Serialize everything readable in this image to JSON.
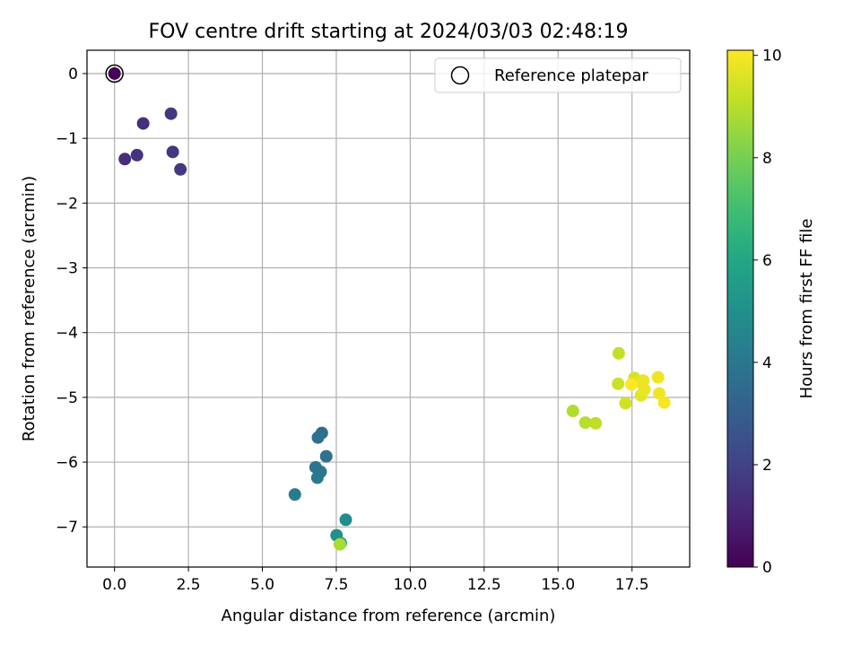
{
  "chart_data": {
    "type": "scatter",
    "title": "FOV centre drift starting at 2024/03/03 02:48:19",
    "xlabel": "Angular distance from reference (arcmin)",
    "ylabel": "Rotation from reference (arcmin)",
    "xlim": [
      -0.93,
      19.45
    ],
    "ylim": [
      -7.62,
      0.36
    ],
    "xticks": [
      0.0,
      2.5,
      5.0,
      7.5,
      10.0,
      12.5,
      15.0,
      17.5
    ],
    "xtick_labels": [
      "0.0",
      "2.5",
      "5.0",
      "7.5",
      "10.0",
      "12.5",
      "15.0",
      "17.5"
    ],
    "yticks": [
      0,
      -1,
      -2,
      -3,
      -4,
      -5,
      -6,
      -7
    ],
    "ytick_labels": [
      "0",
      "−1",
      "−2",
      "−3",
      "−4",
      "−5",
      "−6",
      "−7"
    ],
    "grid": true,
    "legend": {
      "location": "top-right",
      "entries": [
        "Reference platepar"
      ]
    },
    "colorbar": {
      "label": "Hours from first FF file",
      "range": [
        0,
        10.1
      ],
      "ticks": [
        0,
        2,
        4,
        6,
        8,
        10
      ],
      "tick_labels": [
        "0",
        "2",
        "4",
        "6",
        "8",
        "10"
      ],
      "colormap": "viridis"
    },
    "reference_point": {
      "x": 0.0,
      "y": 0.0
    },
    "points": [
      {
        "x": 0.0,
        "y": 0.0,
        "hours": 0.1
      },
      {
        "x": 0.97,
        "y": -0.77,
        "hours": 1.4
      },
      {
        "x": 1.91,
        "y": -0.62,
        "hours": 1.6
      },
      {
        "x": 0.35,
        "y": -1.32,
        "hours": 1.3
      },
      {
        "x": 0.76,
        "y": -1.26,
        "hours": 1.5
      },
      {
        "x": 1.97,
        "y": -1.21,
        "hours": 1.6
      },
      {
        "x": 2.23,
        "y": -1.48,
        "hours": 1.7
      },
      {
        "x": 7.01,
        "y": -5.55,
        "hours": 3.6
      },
      {
        "x": 6.88,
        "y": -5.62,
        "hours": 3.7
      },
      {
        "x": 7.16,
        "y": -5.91,
        "hours": 3.8
      },
      {
        "x": 6.8,
        "y": -6.08,
        "hours": 3.9
      },
      {
        "x": 6.97,
        "y": -6.15,
        "hours": 4.0
      },
      {
        "x": 6.86,
        "y": -6.24,
        "hours": 4.1
      },
      {
        "x": 6.1,
        "y": -6.5,
        "hours": 4.2
      },
      {
        "x": 7.82,
        "y": -6.89,
        "hours": 4.9
      },
      {
        "x": 7.51,
        "y": -7.13,
        "hours": 5.0
      },
      {
        "x": 7.65,
        "y": -7.25,
        "hours": 5.4
      },
      {
        "x": 7.62,
        "y": -7.27,
        "hours": 8.8
      },
      {
        "x": 15.5,
        "y": -5.21,
        "hours": 8.9
      },
      {
        "x": 15.92,
        "y": -5.39,
        "hours": 9.0
      },
      {
        "x": 16.27,
        "y": -5.4,
        "hours": 9.1
      },
      {
        "x": 17.05,
        "y": -4.32,
        "hours": 9.2
      },
      {
        "x": 17.03,
        "y": -4.79,
        "hours": 9.3
      },
      {
        "x": 17.28,
        "y": -5.09,
        "hours": 9.4
      },
      {
        "x": 17.58,
        "y": -4.7,
        "hours": 9.5
      },
      {
        "x": 17.7,
        "y": -4.75,
        "hours": 9.6
      },
      {
        "x": 17.8,
        "y": -4.97,
        "hours": 9.7
      },
      {
        "x": 17.92,
        "y": -4.88,
        "hours": 9.8
      },
      {
        "x": 17.88,
        "y": -4.74,
        "hours": 9.8
      },
      {
        "x": 18.38,
        "y": -4.69,
        "hours": 9.9
      },
      {
        "x": 18.42,
        "y": -4.94,
        "hours": 9.9
      },
      {
        "x": 18.59,
        "y": -5.08,
        "hours": 10.0
      },
      {
        "x": 17.48,
        "y": -4.8,
        "hours": 10.1
      }
    ]
  }
}
